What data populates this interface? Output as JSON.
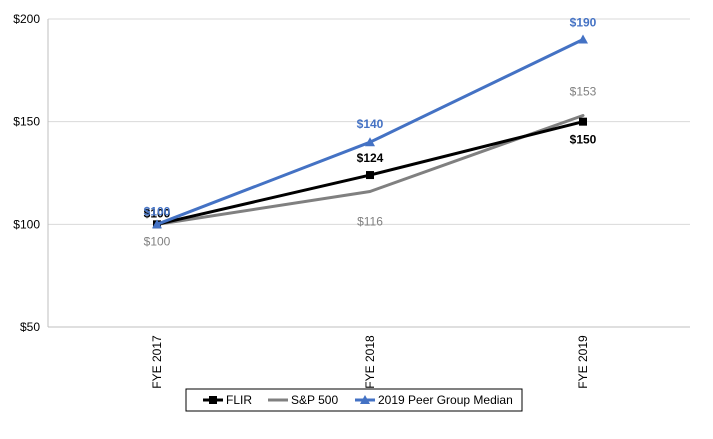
{
  "chart_data": {
    "type": "line",
    "title": "",
    "xlabel": "",
    "ylabel": "",
    "categories": [
      "FYE 2017",
      "FYE 2018",
      "FYE 2019"
    ],
    "ylim": [
      50,
      200
    ],
    "yticks": [
      50,
      100,
      150,
      200
    ],
    "ytick_labels": [
      "$50",
      "$100",
      "$150",
      "$200"
    ],
    "grid": true,
    "legend_position": "bottom",
    "series": [
      {
        "name": "FLIR",
        "values": [
          100,
          124,
          150
        ],
        "labels": [
          "$100",
          "$124",
          "$150"
        ],
        "color": "#000000",
        "marker": "square",
        "label_bold": true,
        "label_color": "#000000"
      },
      {
        "name": "S&P 500",
        "values": [
          100,
          116,
          153
        ],
        "labels": [
          "$100",
          "$116",
          "$153"
        ],
        "color": "#808080",
        "marker": "none",
        "label_bold": false,
        "label_color": "#808080"
      },
      {
        "name": "2019 Peer Group Median",
        "values": [
          100,
          140,
          190
        ],
        "labels": [
          "$100",
          "$140",
          "$190"
        ],
        "color": "#4472C4",
        "marker": "triangle",
        "label_bold": true,
        "label_color": "#4472C4"
      }
    ]
  }
}
